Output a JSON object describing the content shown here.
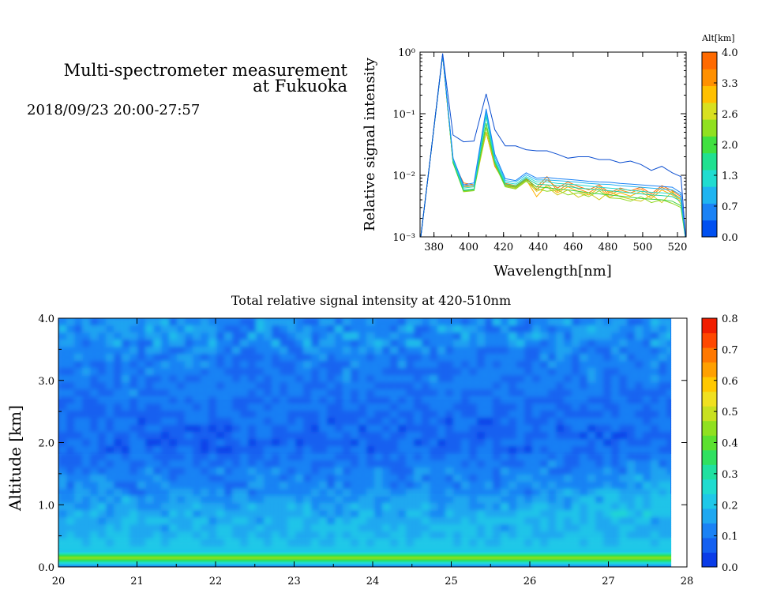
{
  "header": {
    "title_line1": "Multi-spectrometer measurement",
    "title_line2": "at Fukuoka",
    "datetime": "2018/09/23 20:00-27:57"
  },
  "chart_data": [
    {
      "type": "line",
      "title": "",
      "xlabel": "Wavelength[nm]",
      "ylabel": "Relative signal intensity",
      "xlim": [
        372,
        525
      ],
      "ylim": [
        0.001,
        1
      ],
      "yscale": "log",
      "x_ticks": [
        "380",
        "400",
        "420",
        "440",
        "460",
        "480",
        "500",
        "520"
      ],
      "x_tick_values": [
        380,
        400,
        420,
        440,
        460,
        480,
        500,
        520
      ],
      "y_ticks": [
        "10⁻³",
        "10⁻²",
        "10⁻¹",
        "10⁰"
      ],
      "y_tick_values": [
        0.001,
        0.01,
        0.1,
        1
      ],
      "colorbar": {
        "label": "Alt[km]",
        "ticks": [
          "0.0",
          "0.7",
          "1.3",
          "2.0",
          "2.6",
          "3.3",
          "4.0"
        ],
        "colors": [
          "#0050f0",
          "#1a82f5",
          "#1fb4f0",
          "#20dcd0",
          "#20e090",
          "#40e040",
          "#90e020",
          "#d8e020",
          "#ffc000",
          "#ff9000",
          "#ff6a00"
        ]
      },
      "x": [
        372,
        378,
        385,
        391,
        397,
        403,
        410,
        415,
        421,
        427,
        433,
        439,
        445,
        451,
        457,
        463,
        469,
        475,
        481,
        487,
        493,
        499,
        505,
        511,
        517,
        522,
        525
      ],
      "series": [
        {
          "color": "#0d4fd0",
          "values": [
            0.0008,
            0.02,
            0.95,
            0.045,
            0.035,
            0.036,
            0.21,
            0.055,
            0.03,
            0.03,
            0.026,
            0.025,
            0.025,
            0.022,
            0.019,
            0.02,
            0.02,
            0.018,
            0.018,
            0.016,
            0.017,
            0.015,
            0.012,
            0.014,
            0.011,
            0.0095,
            0.0008
          ]
        },
        {
          "color": "#1a82f5",
          "values": [
            0.0008,
            0.02,
            0.9,
            0.019,
            0.007,
            0.0075,
            0.12,
            0.022,
            0.0088,
            0.0082,
            0.011,
            0.009,
            0.0092,
            0.0088,
            0.0086,
            0.0083,
            0.008,
            0.0078,
            0.0077,
            0.0074,
            0.0072,
            0.007,
            0.0068,
            0.0066,
            0.0064,
            0.0052,
            0.0008
          ]
        },
        {
          "color": "#1fb4f0",
          "values": [
            0.0008,
            0.02,
            0.9,
            0.019,
            0.0066,
            0.007,
            0.11,
            0.02,
            0.0082,
            0.0078,
            0.0102,
            0.0084,
            0.0084,
            0.0082,
            0.008,
            0.0077,
            0.0074,
            0.0072,
            0.0071,
            0.0068,
            0.0066,
            0.0064,
            0.0062,
            0.006,
            0.0058,
            0.0048,
            0.0008
          ]
        },
        {
          "color": "#20dcd0",
          "values": [
            0.0008,
            0.02,
            0.9,
            0.018,
            0.0062,
            0.0065,
            0.1,
            0.018,
            0.0077,
            0.0072,
            0.0095,
            0.0078,
            0.0078,
            0.0074,
            0.0072,
            0.007,
            0.0067,
            0.0064,
            0.0062,
            0.006,
            0.0057,
            0.0055,
            0.0053,
            0.0052,
            0.005,
            0.0042,
            0.0008
          ]
        },
        {
          "color": "#20d0a0",
          "values": [
            0.0008,
            0.02,
            0.9,
            0.017,
            0.0058,
            0.006,
            0.09,
            0.017,
            0.0072,
            0.0068,
            0.009,
            0.0072,
            0.007,
            0.0068,
            0.0066,
            0.0062,
            0.006,
            0.0058,
            0.0056,
            0.0054,
            0.0052,
            0.005,
            0.0048,
            0.0047,
            0.0045,
            0.0038,
            0.0008
          ]
        },
        {
          "color": "#3cd040",
          "values": [
            0.0008,
            0.02,
            0.9,
            0.016,
            0.0056,
            0.0058,
            0.07,
            0.016,
            0.0068,
            0.0064,
            0.0085,
            0.0065,
            0.0063,
            0.006,
            0.0058,
            0.0055,
            0.0052,
            0.005,
            0.0048,
            0.0046,
            0.0044,
            0.0042,
            0.0041,
            0.004,
            0.0038,
            0.0032,
            0.0008
          ]
        },
        {
          "color": "#90d820",
          "values": [
            0.0008,
            0.02,
            0.9,
            0.016,
            0.0054,
            0.0056,
            0.06,
            0.015,
            0.0065,
            0.006,
            0.008,
            0.006,
            0.0055,
            0.0058,
            0.0048,
            0.0052,
            0.0045,
            0.0056,
            0.0043,
            0.0042,
            0.0038,
            0.0045,
            0.0036,
            0.004,
            0.0035,
            0.003,
            0.0008
          ]
        },
        {
          "color": "#d0c818",
          "values": [
            0.0008,
            0.02,
            0.9,
            0.016,
            0.0055,
            0.0058,
            0.05,
            0.015,
            0.0067,
            0.0062,
            0.0082,
            0.0055,
            0.0065,
            0.0048,
            0.0058,
            0.0044,
            0.0052,
            0.004,
            0.0055,
            0.0045,
            0.0041,
            0.0038,
            0.0048,
            0.0036,
            0.0055,
            0.0034,
            0.0008
          ]
        },
        {
          "color": "#ffb000",
          "values": [
            0.0008,
            0.02,
            0.9,
            0.016,
            0.0065,
            0.0065,
            0.05,
            0.015,
            0.007,
            0.0065,
            0.0085,
            0.0045,
            0.007,
            0.0052,
            0.0065,
            0.0055,
            0.0048,
            0.0062,
            0.0044,
            0.0052,
            0.0046,
            0.0055,
            0.0042,
            0.0058,
            0.0048,
            0.004,
            0.0008
          ]
        },
        {
          "color": "#ff8a00",
          "values": [
            0.0008,
            0.02,
            0.9,
            0.016,
            0.007,
            0.0068,
            0.05,
            0.014,
            0.0072,
            0.0066,
            0.0088,
            0.0064,
            0.0095,
            0.0055,
            0.0072,
            0.006,
            0.0052,
            0.0066,
            0.0048,
            0.0058,
            0.0052,
            0.006,
            0.0046,
            0.0064,
            0.0052,
            0.0042,
            0.0008
          ]
        },
        {
          "color": "#ff6a00",
          "values": [
            0.0008,
            0.02,
            0.9,
            0.017,
            0.0075,
            0.007,
            0.05,
            0.014,
            0.0074,
            0.0068,
            0.009,
            0.0058,
            0.0085,
            0.0062,
            0.0078,
            0.0066,
            0.0058,
            0.007,
            0.0052,
            0.0062,
            0.0056,
            0.0064,
            0.005,
            0.0068,
            0.0056,
            0.0045,
            0.0008
          ]
        }
      ]
    },
    {
      "type": "heatmap",
      "title": "Total relative signal intensity at 420-510nm",
      "xlabel": "",
      "ylabel": "Altitude [km]",
      "xlim": [
        20,
        28
      ],
      "ylim": [
        0,
        4
      ],
      "data_x_end": 27.8,
      "x_ticks": [
        "20",
        "21",
        "22",
        "23",
        "24",
        "25",
        "26",
        "27",
        "28"
      ],
      "x_tick_values": [
        20,
        21,
        22,
        23,
        24,
        25,
        26,
        27,
        28
      ],
      "y_ticks": [
        "0.0",
        "1.0",
        "2.0",
        "3.0",
        "4.0"
      ],
      "y_tick_values": [
        0,
        1,
        2,
        3,
        4
      ],
      "colorbar": {
        "range": [
          0,
          0.8
        ],
        "ticks": [
          "0.0",
          "0.1",
          "0.2",
          "0.3",
          "0.4",
          "0.5",
          "0.6",
          "0.7",
          "0.8"
        ],
        "colors": [
          "#0a3ce8",
          "#1460f0",
          "#1a82f5",
          "#1fa8f0",
          "#1fc8e8",
          "#20dcd0",
          "#20e0a0",
          "#30e060",
          "#5ce030",
          "#90e020",
          "#c8e020",
          "#f0e020",
          "#ffc800",
          "#ffa000",
          "#ff7800",
          "#ff4800",
          "#f01e00"
        ]
      },
      "altitude_profile": [
        {
          "alt": 0.0,
          "value": 0.1
        },
        {
          "alt": 0.16,
          "value": 0.45
        },
        {
          "alt": 0.2,
          "value": 0.32
        },
        {
          "alt": 0.26,
          "value": 0.2
        },
        {
          "alt": 0.3,
          "value": 0.24
        },
        {
          "alt": 0.4,
          "value": 0.19
        },
        {
          "alt": 0.8,
          "value": 0.18
        },
        {
          "alt": 1.2,
          "value": 0.14
        },
        {
          "alt": 1.6,
          "value": 0.11
        },
        {
          "alt": 2.0,
          "value": 0.08
        },
        {
          "alt": 2.5,
          "value": 0.09
        },
        {
          "alt": 3.0,
          "value": 0.1
        },
        {
          "alt": 3.5,
          "value": 0.11
        },
        {
          "alt": 4.0,
          "value": 0.12
        }
      ]
    }
  ]
}
